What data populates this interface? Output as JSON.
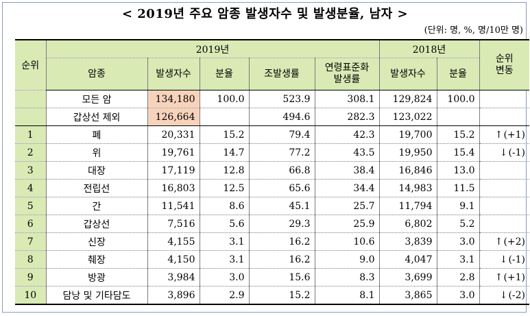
{
  "title": "< 2019년 주요 암종 발생자수 및 발생분율, 남자 >",
  "unit": "(단위: 명, %, 명/10만 명)",
  "headers": {
    "rank": "순위",
    "year2019": "2019년",
    "year2018": "2018년",
    "rank_change_l1": "순위",
    "rank_change_l2": "변동",
    "cancer": "암종",
    "cases": "발생자수",
    "share": "분율",
    "crude_l1": "조발생률",
    "asr_l1": "연령표준화",
    "asr_l2": "발생률",
    "cases_2018": "발생자수",
    "share_2018": "분율"
  },
  "summary_rows": [
    {
      "cancer": "모든 암",
      "cases": "134,180",
      "share": "100.0",
      "crude": "523.9",
      "asr": "308.1",
      "cases_2018": "129,824",
      "share_2018": "100.0"
    },
    {
      "cancer": "갑상선 제외",
      "cases": "126,664",
      "share": "",
      "crude": "494.6",
      "asr": "282.3",
      "cases_2018": "123,022",
      "share_2018": ""
    }
  ],
  "rows": [
    {
      "rank": "1",
      "cancer": "폐",
      "cases": "20,331",
      "share": "15.2",
      "crude": "79.4",
      "asr": "42.3",
      "cases_2018": "19,700",
      "share_2018": "15.2",
      "arrow": "↑",
      "change": "(+1)"
    },
    {
      "rank": "2",
      "cancer": "위",
      "cases": "19,761",
      "share": "14.7",
      "crude": "77.2",
      "asr": "43.5",
      "cases_2018": "19,950",
      "share_2018": "15.4",
      "arrow": "↓",
      "change": "(-1)"
    },
    {
      "rank": "3",
      "cancer": "대장",
      "cases": "17,119",
      "share": "12.8",
      "crude": "66.8",
      "asr": "38.4",
      "cases_2018": "16,846",
      "share_2018": "13.0",
      "arrow": "",
      "change": ""
    },
    {
      "rank": "4",
      "cancer": "전립선",
      "cases": "16,803",
      "share": "12.5",
      "crude": "65.6",
      "asr": "34.4",
      "cases_2018": "14,983",
      "share_2018": "11.5",
      "arrow": "",
      "change": ""
    },
    {
      "rank": "5",
      "cancer": "간",
      "cases": "11,541",
      "share": "8.6",
      "crude": "45.1",
      "asr": "25.7",
      "cases_2018": "11,794",
      "share_2018": "9.1",
      "arrow": "",
      "change": ""
    },
    {
      "rank": "6",
      "cancer": "갑상선",
      "cases": "7,516",
      "share": "5.6",
      "crude": "29.3",
      "asr": "25.9",
      "cases_2018": "6,802",
      "share_2018": "5.2",
      "arrow": "",
      "change": ""
    },
    {
      "rank": "7",
      "cancer": "신장",
      "cases": "4,155",
      "share": "3.1",
      "crude": "16.2",
      "asr": "10.6",
      "cases_2018": "3,839",
      "share_2018": "3.0",
      "arrow": "↑",
      "change": "(+2)"
    },
    {
      "rank": "8",
      "cancer": "췌장",
      "cases": "4,150",
      "share": "3.1",
      "crude": "16.2",
      "asr": "9.0",
      "cases_2018": "4,047",
      "share_2018": "3.1",
      "arrow": "↓",
      "change": "(-1)"
    },
    {
      "rank": "9",
      "cancer": "방광",
      "cases": "3,984",
      "share": "3.0",
      "crude": "15.6",
      "asr": "8.3",
      "cases_2018": "3,699",
      "share_2018": "2.8",
      "arrow": "↑",
      "change": "(+1)"
    },
    {
      "rank": "10",
      "cancer": "담낭 및 기타담도",
      "cases": "3,896",
      "share": "2.9",
      "crude": "15.2",
      "asr": "8.1",
      "cases_2018": "3,865",
      "share_2018": "3.0",
      "arrow": "↓",
      "change": "(-2)"
    }
  ]
}
